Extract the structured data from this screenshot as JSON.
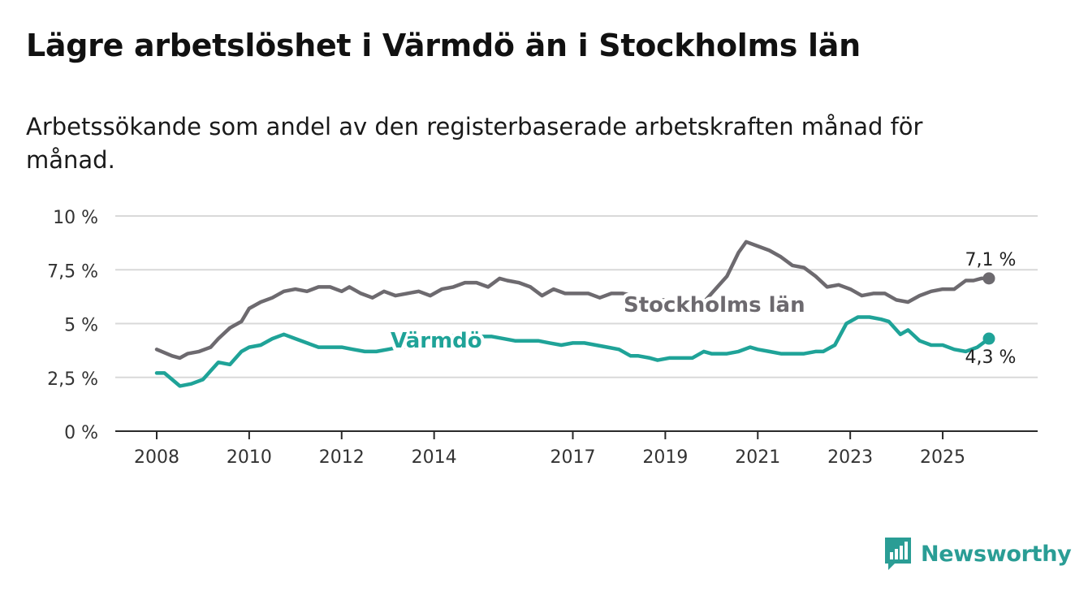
{
  "title": "Lägre arbetslöshet i Värmdö än i Stockholms län",
  "subtitle": "Arbetssökande som andel av den registerbaserade arbetskraften månad för månad.",
  "brand": {
    "name": "Newsworthy",
    "color": "#2a9d95",
    "icon": "bar-chart-speech-bubble-icon"
  },
  "chart_data": {
    "type": "line",
    "x_axis": {
      "ticks": [
        "2008",
        "2010",
        "2012",
        "2014",
        "2017",
        "2019",
        "2021",
        "2023",
        "2025"
      ],
      "range": [
        "2008-01",
        "2025-12"
      ]
    },
    "y_axis": {
      "ticks": [
        "0 %",
        "2,5 %",
        "5 %",
        "7,5 %",
        "10 %"
      ],
      "range": [
        0,
        10
      ],
      "unit": "%"
    },
    "grid": "horizontal",
    "series": [
      {
        "name": "Stockholms län",
        "color": "#6d6a6f",
        "end_label": "7,1 %",
        "points": [
          [
            "2008-01",
            3.8
          ],
          [
            "2008-05",
            3.5
          ],
          [
            "2008-07",
            3.4
          ],
          [
            "2008-09",
            3.6
          ],
          [
            "2008-12",
            3.7
          ],
          [
            "2009-03",
            3.9
          ],
          [
            "2009-05",
            4.3
          ],
          [
            "2009-08",
            4.8
          ],
          [
            "2009-11",
            5.1
          ],
          [
            "2010-01",
            5.7
          ],
          [
            "2010-04",
            6.0
          ],
          [
            "2010-07",
            6.2
          ],
          [
            "2010-10",
            6.5
          ],
          [
            "2011-01",
            6.6
          ],
          [
            "2011-04",
            6.5
          ],
          [
            "2011-07",
            6.7
          ],
          [
            "2011-10",
            6.7
          ],
          [
            "2012-01",
            6.5
          ],
          [
            "2012-03",
            6.7
          ],
          [
            "2012-06",
            6.4
          ],
          [
            "2012-09",
            6.2
          ],
          [
            "2012-12",
            6.5
          ],
          [
            "2013-03",
            6.3
          ],
          [
            "2013-06",
            6.4
          ],
          [
            "2013-09",
            6.5
          ],
          [
            "2013-12",
            6.3
          ],
          [
            "2014-03",
            6.6
          ],
          [
            "2014-06",
            6.7
          ],
          [
            "2014-09",
            6.9
          ],
          [
            "2014-12",
            6.9
          ],
          [
            "2015-03",
            6.7
          ],
          [
            "2015-06",
            7.1
          ],
          [
            "2015-08",
            7.0
          ],
          [
            "2015-11",
            6.9
          ],
          [
            "2016-02",
            6.7
          ],
          [
            "2016-05",
            6.3
          ],
          [
            "2016-08",
            6.6
          ],
          [
            "2016-11",
            6.4
          ],
          [
            "2017-02",
            6.4
          ],
          [
            "2017-05",
            6.4
          ],
          [
            "2017-08",
            6.2
          ],
          [
            "2017-11",
            6.4
          ],
          [
            "2018-02",
            6.4
          ],
          [
            "2018-05",
            6.3
          ],
          [
            "2018-08",
            6.0
          ],
          [
            "2018-11",
            6.1
          ],
          [
            "2019-02",
            6.1
          ],
          [
            "2019-05",
            6.0
          ],
          [
            "2019-08",
            6.1
          ],
          [
            "2019-11",
            6.0
          ],
          [
            "2019-12",
            6.2
          ],
          [
            "2020-05",
            7.2
          ],
          [
            "2020-08",
            8.3
          ],
          [
            "2020-10",
            8.8
          ],
          [
            "2021-01",
            8.6
          ],
          [
            "2021-04",
            8.4
          ],
          [
            "2021-07",
            8.1
          ],
          [
            "2021-10",
            7.7
          ],
          [
            "2022-01",
            7.6
          ],
          [
            "2022-04",
            7.2
          ],
          [
            "2022-07",
            6.7
          ],
          [
            "2022-10",
            6.8
          ],
          [
            "2023-01",
            6.6
          ],
          [
            "2023-04",
            6.3
          ],
          [
            "2023-07",
            6.4
          ],
          [
            "2023-10",
            6.4
          ],
          [
            "2024-01",
            6.1
          ],
          [
            "2024-04",
            6.0
          ],
          [
            "2024-07",
            6.3
          ],
          [
            "2024-10",
            6.5
          ],
          [
            "2025-01",
            6.6
          ],
          [
            "2025-04",
            6.6
          ],
          [
            "2025-07",
            7.0
          ],
          [
            "2025-09",
            7.0
          ],
          [
            "2025-11",
            7.1
          ],
          [
            "2026-01",
            7.1
          ]
        ]
      },
      {
        "name": "Värmdö",
        "color": "#1fa398",
        "end_label": "4,3 %",
        "points": [
          [
            "2008-01",
            2.7
          ],
          [
            "2008-03",
            2.7
          ],
          [
            "2008-05",
            2.4
          ],
          [
            "2008-07",
            2.1
          ],
          [
            "2008-10",
            2.2
          ],
          [
            "2009-01",
            2.4
          ],
          [
            "2009-03",
            2.8
          ],
          [
            "2009-05",
            3.2
          ],
          [
            "2009-08",
            3.1
          ],
          [
            "2009-11",
            3.7
          ],
          [
            "2010-01",
            3.9
          ],
          [
            "2010-04",
            4.0
          ],
          [
            "2010-07",
            4.3
          ],
          [
            "2010-10",
            4.5
          ],
          [
            "2011-01",
            4.3
          ],
          [
            "2011-04",
            4.1
          ],
          [
            "2011-07",
            3.9
          ],
          [
            "2011-10",
            3.9
          ],
          [
            "2012-01",
            3.9
          ],
          [
            "2012-04",
            3.8
          ],
          [
            "2012-07",
            3.7
          ],
          [
            "2012-10",
            3.7
          ],
          [
            "2013-01",
            3.8
          ],
          [
            "2013-04",
            3.9
          ],
          [
            "2013-07",
            3.9
          ],
          [
            "2013-10",
            4.0
          ],
          [
            "2014-01",
            4.1
          ],
          [
            "2014-04",
            4.3
          ],
          [
            "2014-07",
            4.5
          ],
          [
            "2014-10",
            4.5
          ],
          [
            "2015-01",
            4.4
          ],
          [
            "2015-04",
            4.4
          ],
          [
            "2015-07",
            4.3
          ],
          [
            "2015-10",
            4.2
          ],
          [
            "2016-01",
            4.2
          ],
          [
            "2016-04",
            4.2
          ],
          [
            "2016-07",
            4.1
          ],
          [
            "2016-10",
            4.0
          ],
          [
            "2017-01",
            4.1
          ],
          [
            "2017-04",
            4.1
          ],
          [
            "2017-07",
            4.0
          ],
          [
            "2017-10",
            3.9
          ],
          [
            "2018-01",
            3.8
          ],
          [
            "2018-04",
            3.5
          ],
          [
            "2018-06",
            3.5
          ],
          [
            "2018-09",
            3.4
          ],
          [
            "2018-11",
            3.3
          ],
          [
            "2019-02",
            3.4
          ],
          [
            "2019-05",
            3.4
          ],
          [
            "2019-08",
            3.4
          ],
          [
            "2019-11",
            3.7
          ],
          [
            "2020-01",
            3.6
          ],
          [
            "2020-05",
            3.6
          ],
          [
            "2020-08",
            3.7
          ],
          [
            "2020-11",
            3.9
          ],
          [
            "2021-01",
            3.8
          ],
          [
            "2021-04",
            3.7
          ],
          [
            "2021-07",
            3.6
          ],
          [
            "2021-10",
            3.6
          ],
          [
            "2022-01",
            3.6
          ],
          [
            "2022-04",
            3.7
          ],
          [
            "2022-06",
            3.7
          ],
          [
            "2022-09",
            4.0
          ],
          [
            "2022-12",
            5.0
          ],
          [
            "2023-03",
            5.3
          ],
          [
            "2023-06",
            5.3
          ],
          [
            "2023-09",
            5.2
          ],
          [
            "2023-11",
            5.1
          ],
          [
            "2024-02",
            4.5
          ],
          [
            "2024-04",
            4.7
          ],
          [
            "2024-07",
            4.2
          ],
          [
            "2024-10",
            4.0
          ],
          [
            "2025-01",
            4.0
          ],
          [
            "2025-04",
            3.8
          ],
          [
            "2025-07",
            3.7
          ],
          [
            "2025-10",
            3.9
          ],
          [
            "2026-01",
            4.3
          ]
        ]
      }
    ]
  }
}
